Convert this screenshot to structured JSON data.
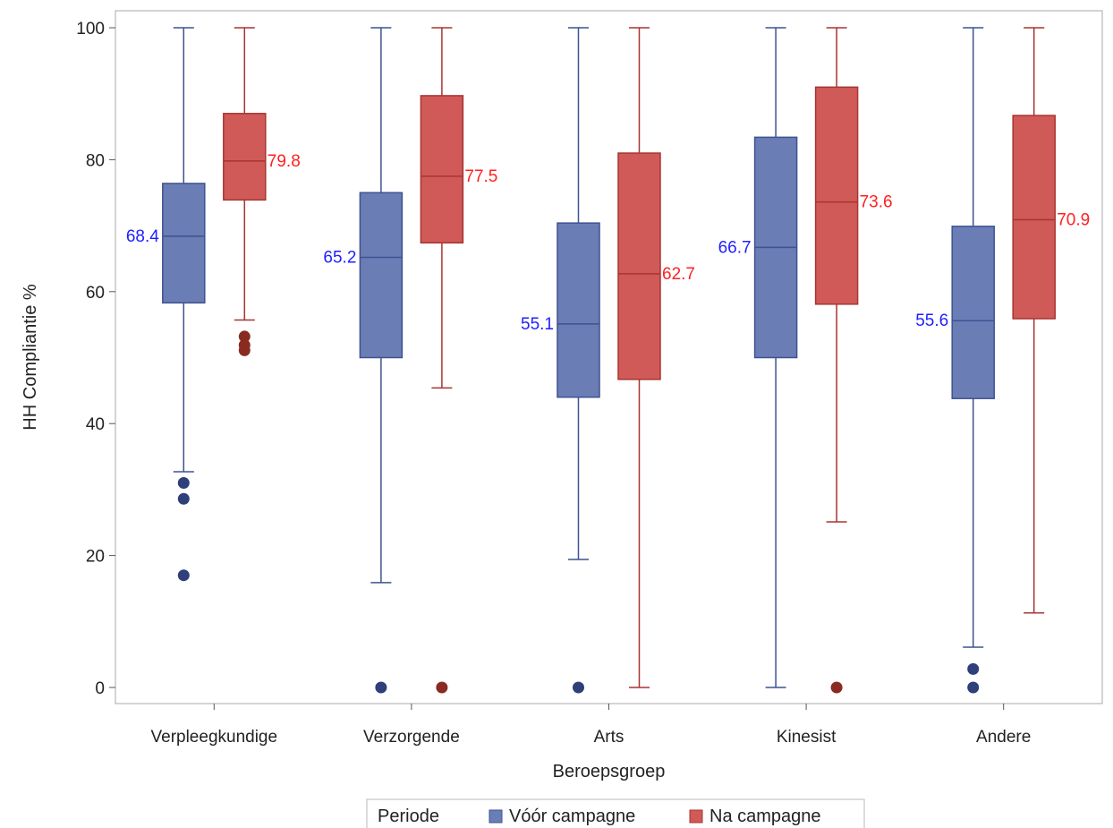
{
  "chart_data": {
    "type": "boxplot",
    "xlabel": "Beroepsgroep",
    "ylabel": "HH Compliantie %",
    "ylim": [
      0,
      100
    ],
    "yticks": [
      0,
      20,
      40,
      60,
      80,
      100
    ],
    "categories": [
      "Verpleegkundige",
      "Verzorgende",
      "Arts",
      "Kinesist",
      "Andere"
    ],
    "legend": {
      "title": "Periode",
      "placement": "bottom"
    },
    "series": [
      {
        "name": "Vóór campagne",
        "color": "#6a7db5",
        "stroke": "#3f5291",
        "label_color": "#1f1fff",
        "outlier_color": "#2e3f7a",
        "boxes": [
          {
            "min": 32.7,
            "q1": 58.3,
            "median": 68.4,
            "q3": 76.4,
            "max": 100,
            "median_label": "68.4",
            "outliers": [
              31.0,
              28.6,
              17.0
            ]
          },
          {
            "min": 15.9,
            "q1": 50.0,
            "median": 65.2,
            "q3": 75.0,
            "max": 100,
            "median_label": "65.2",
            "outliers": [
              0
            ]
          },
          {
            "min": 19.4,
            "q1": 44.0,
            "median": 55.1,
            "q3": 70.4,
            "max": 100,
            "median_label": "55.1",
            "outliers": [
              0
            ]
          },
          {
            "min": 0,
            "q1": 50.0,
            "median": 66.7,
            "q3": 83.4,
            "max": 100,
            "median_label": "66.7",
            "outliers": []
          },
          {
            "min": 6.1,
            "q1": 43.8,
            "median": 55.6,
            "q3": 69.9,
            "max": 100,
            "median_label": "55.6",
            "outliers": [
              2.8,
              0
            ]
          }
        ]
      },
      {
        "name": "Na campagne",
        "color": "#d05a57",
        "stroke": "#a83431",
        "label_color": "#ff2020",
        "outlier_color": "#8a2b22",
        "boxes": [
          {
            "min": 55.7,
            "q1": 73.9,
            "median": 79.8,
            "q3": 87.0,
            "max": 100,
            "median_label": "79.8",
            "outliers": [
              53.2,
              51.9,
              51.1
            ]
          },
          {
            "min": 45.4,
            "q1": 67.4,
            "median": 77.5,
            "q3": 89.7,
            "max": 100,
            "median_label": "77.5",
            "outliers": [
              0
            ]
          },
          {
            "min": 0,
            "q1": 46.7,
            "median": 62.7,
            "q3": 81.0,
            "max": 100,
            "median_label": "62.7",
            "outliers": []
          },
          {
            "min": 25.1,
            "q1": 58.1,
            "median": 73.6,
            "q3": 91.0,
            "max": 100,
            "median_label": "73.6",
            "outliers": [
              0
            ]
          },
          {
            "min": 11.3,
            "q1": 55.9,
            "median": 70.9,
            "q3": 86.7,
            "max": 100,
            "median_label": "70.9",
            "outliers": []
          }
        ]
      }
    ]
  }
}
